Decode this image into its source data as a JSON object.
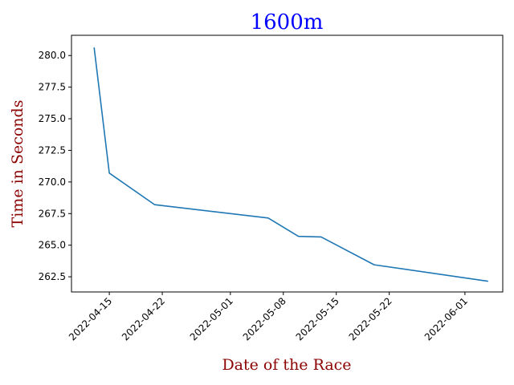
{
  "chart_data": {
    "type": "line",
    "title": "1600m",
    "xlabel": "Date of the Race",
    "ylabel": "Time in Seconds",
    "title_color": "#0000ff",
    "label_color": "#8b0000",
    "line_color": "#1f77b4",
    "x_tick_labels": [
      "2022-04-15",
      "2022-04-22",
      "2022-05-01",
      "2022-05-08",
      "2022-05-15",
      "2022-05-22",
      "2022-06-01"
    ],
    "y_tick_labels": [
      "262.5",
      "265.0",
      "267.5",
      "270.0",
      "272.5",
      "275.0",
      "277.5",
      "280.0"
    ],
    "series": [
      {
        "x": [
          "2022-04-13",
          "2022-04-15",
          "2022-04-21",
          "2022-05-06",
          "2022-05-10",
          "2022-05-13",
          "2022-05-20",
          "2022-06-04"
        ],
        "y": [
          280.6,
          270.7,
          268.2,
          267.15,
          265.7,
          265.65,
          263.45,
          262.15
        ]
      }
    ],
    "xlim": [
      "2022-04-10",
      "2022-06-06"
    ],
    "ylim": [
      261.3,
      281.6
    ],
    "grid": false,
    "legend": "none"
  }
}
